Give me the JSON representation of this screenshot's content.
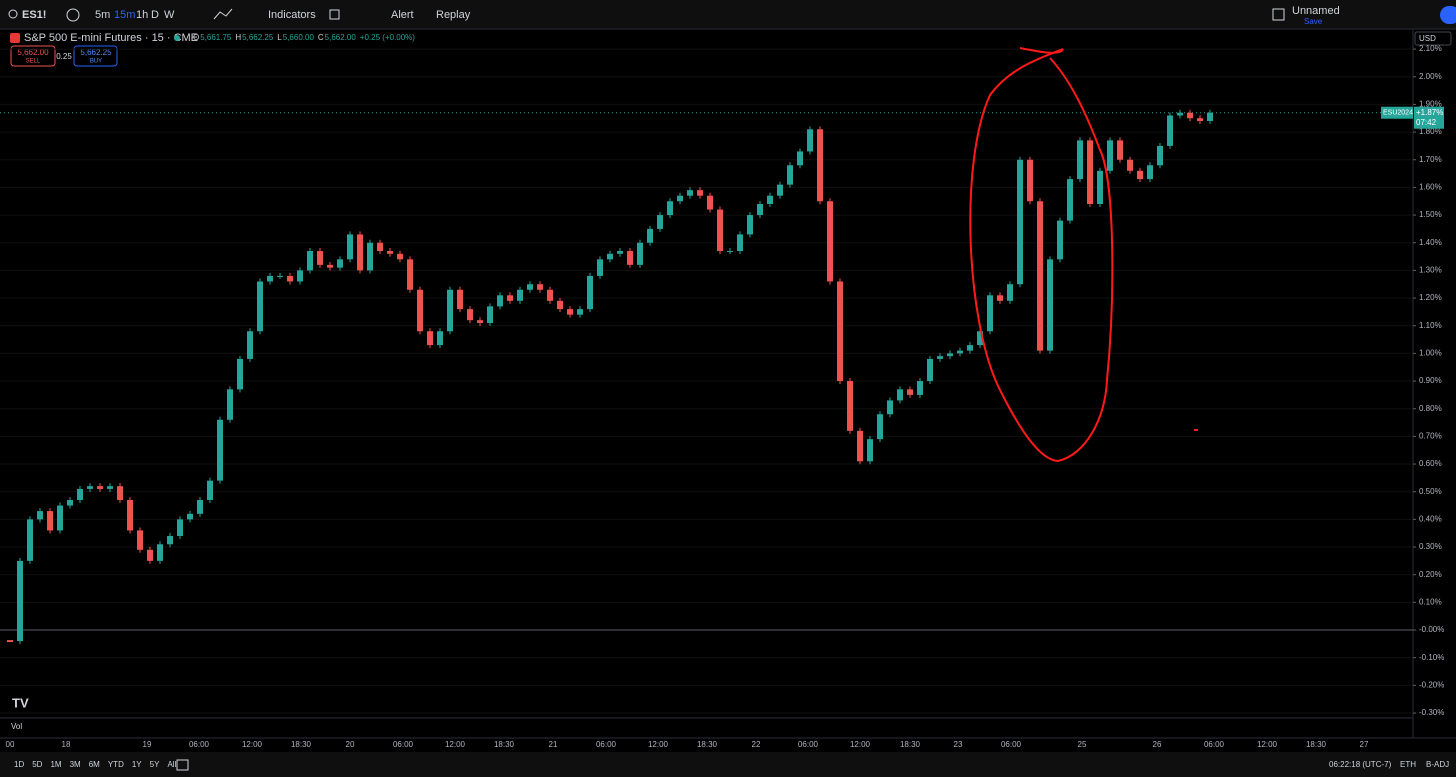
{
  "toolbar": {
    "symbol": "ES1!",
    "intervals": [
      "5m",
      "15m",
      "1h",
      "D",
      "W"
    ],
    "indicators": "Indicators",
    "alert": "Alert",
    "replay": "Replay",
    "layout_name": "Unnamed",
    "save": "Save",
    "currency": "USD"
  },
  "legend": {
    "title": "S&P 500 E-mini Futures · 15 · CME",
    "ohlc": [
      {
        "label": "O",
        "value": "5,661.75"
      },
      {
        "label": "H",
        "value": "5,662.25"
      },
      {
        "label": "L",
        "value": "5,660.00"
      },
      {
        "label": "C",
        "value": "5,662.00"
      }
    ],
    "change": "+0.25 (+0.00%)",
    "sell_price": "5,662.00",
    "sell": "SELL",
    "spread": "0.25",
    "buy_price": "5,662.25",
    "buy": "BUY"
  },
  "chart": {
    "type": "candlestick",
    "values": [
      -0.04,
      0.25,
      0.4,
      0.43,
      0.36,
      0.45,
      0.47,
      0.51,
      0.52,
      0.51,
      0.52,
      0.47,
      0.36,
      0.29,
      0.25,
      0.31,
      0.34,
      0.4,
      0.42,
      0.47,
      0.54,
      0.76,
      0.87,
      0.98,
      1.08,
      1.26,
      1.28,
      1.28,
      1.26,
      1.3,
      1.37,
      1.32,
      1.31,
      1.34,
      1.43,
      1.3,
      1.4,
      1.37,
      1.36,
      1.34,
      1.23,
      1.08,
      1.03,
      1.08,
      1.23,
      1.16,
      1.12,
      1.11,
      1.17,
      1.21,
      1.19,
      1.23,
      1.25,
      1.23,
      1.19,
      1.16,
      1.14,
      1.16,
      1.28,
      1.34,
      1.36,
      1.37,
      1.32,
      1.4,
      1.45,
      1.5,
      1.55,
      1.57,
      1.59,
      1.57,
      1.52,
      1.37,
      1.37,
      1.43,
      1.5,
      1.54,
      1.57,
      1.61,
      1.68,
      1.73,
      1.81,
      1.55,
      1.26,
      0.9,
      0.72,
      0.61,
      0.69,
      0.78,
      0.83,
      0.87,
      0.85,
      0.9,
      0.98,
      0.99,
      1.0,
      1.01,
      1.03,
      1.08,
      1.21,
      1.19,
      1.25,
      1.7,
      1.55,
      1.01,
      1.34,
      1.48,
      1.63,
      1.77,
      1.54,
      1.66,
      1.77,
      1.7,
      1.66,
      1.63,
      1.68,
      1.75,
      1.86,
      1.87,
      1.85,
      1.84,
      1.87
    ],
    "up_color": "#26a69a",
    "down_color": "#ef5350",
    "ylim": [
      -0.318,
      2.169
    ],
    "yticks": [
      {
        "value": 2.1,
        "label": "2.10%"
      },
      {
        "value": 2.0,
        "label": "2.00%"
      },
      {
        "value": 1.9,
        "label": "1.90%"
      },
      {
        "value": 1.8,
        "label": "1.80%"
      },
      {
        "value": 1.7,
        "label": "1.70%"
      },
      {
        "value": 1.6,
        "label": "1.60%"
      },
      {
        "value": 1.5,
        "label": "1.50%"
      },
      {
        "value": 1.4,
        "label": "1.40%"
      },
      {
        "value": 1.3,
        "label": "1.30%"
      },
      {
        "value": 1.2,
        "label": "1.20%"
      },
      {
        "value": 1.1,
        "label": "1.10%"
      },
      {
        "value": 1.0,
        "label": "1.00%"
      },
      {
        "value": 0.9,
        "label": "0.90%"
      },
      {
        "value": 0.8,
        "label": "0.80%"
      },
      {
        "value": 0.7,
        "label": "0.70%"
      },
      {
        "value": 0.6,
        "label": "0.60%"
      },
      {
        "value": 0.5,
        "label": "0.50%"
      },
      {
        "value": 0.4,
        "label": "0.40%"
      },
      {
        "value": 0.3,
        "label": "0.30%"
      },
      {
        "value": 0.2,
        "label": "0.20%"
      },
      {
        "value": 0.1,
        "label": "0.10%"
      },
      {
        "value": 0,
        "label": "-0.00%"
      },
      {
        "value": -0.1,
        "label": "-0.10%"
      },
      {
        "value": -0.2,
        "label": "-0.20%"
      },
      {
        "value": -0.3,
        "label": "-0.30%"
      }
    ],
    "xticks": [
      "00",
      "18",
      "19",
      "06:00",
      "12:00",
      "18:30",
      "20",
      "06:00",
      "12:00",
      "18:30",
      "21",
      "06:00",
      "12:00",
      "18:30",
      "22",
      "06:00",
      "12:00",
      "18:30",
      "23",
      "06:00",
      "25",
      "26",
      "06:00",
      "12:00",
      "18:30",
      "27"
    ],
    "last": {
      "symbol": "ESU2024",
      "value": 1.87,
      "label": "+1.87%",
      "countdown": "07:42"
    },
    "volume_label": "Vol"
  },
  "footer": {
    "ranges": [
      "1D",
      "5D",
      "1M",
      "3M",
      "6M",
      "YTD",
      "1Y",
      "5Y",
      "All"
    ],
    "time": "06:22:18 (UTC-7)",
    "session": "ETH",
    "adjust": "B-ADJ"
  }
}
